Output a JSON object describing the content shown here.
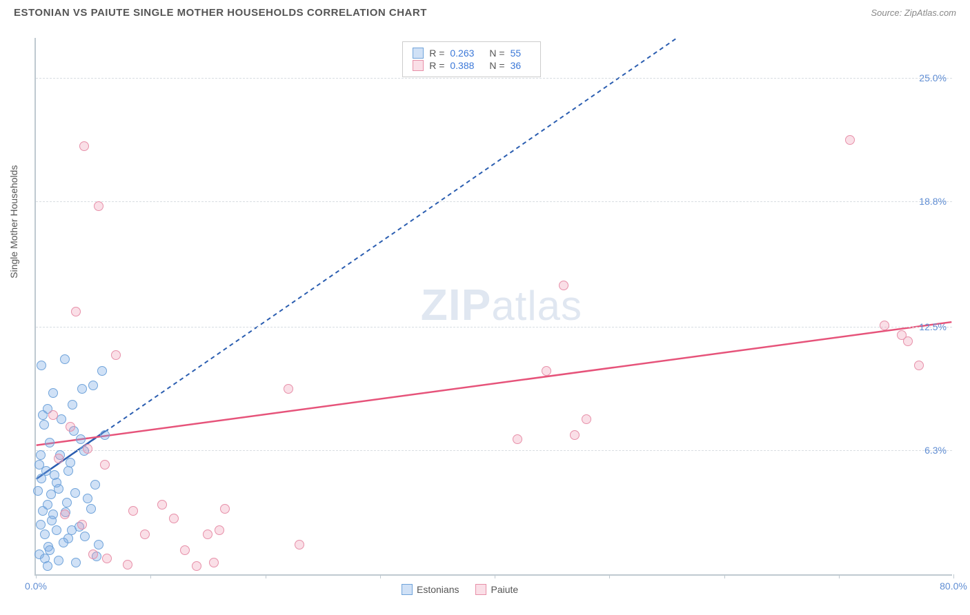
{
  "header": {
    "title": "ESTONIAN VS PAIUTE SINGLE MOTHER HOUSEHOLDS CORRELATION CHART",
    "source": "Source: ZipAtlas.com"
  },
  "chart": {
    "type": "scatter",
    "ylabel": "Single Mother Households",
    "xlim": [
      0,
      80
    ],
    "ylim": [
      0,
      27
    ],
    "xtick_positions": [
      0,
      10,
      20,
      30,
      40,
      50,
      60,
      70,
      80
    ],
    "xtick_labels_visible": {
      "0": "0.0%",
      "80": "80.0%"
    },
    "ytick_positions": [
      6.3,
      12.5,
      18.8,
      25.0
    ],
    "ytick_labels": [
      "6.3%",
      "12.5%",
      "18.8%",
      "25.0%"
    ],
    "grid_color": "#d8dde2",
    "axis_color": "#bfc9d0",
    "background_color": "#ffffff",
    "tick_label_color": "#5f8dd3",
    "watermark": {
      "bold": "ZIP",
      "rest": "atlas"
    },
    "marker_size": 14,
    "series": [
      {
        "name": "Estonians",
        "fill": "rgba(120,170,230,0.35)",
        "stroke": "#6fa3da",
        "trend": {
          "color": "#2a5db0",
          "dash": "6,5",
          "width": 2,
          "x1": 0,
          "y1": 4.8,
          "x2": 56,
          "y2": 27
        },
        "solid_segment": {
          "color": "#2a5db0",
          "width": 2.5,
          "x1": 0,
          "y1": 4.8,
          "x2": 6,
          "y2": 7.2
        },
        "stats": {
          "R": "0.263",
          "N": "55"
        },
        "points": [
          [
            0.2,
            4.2
          ],
          [
            0.3,
            5.5
          ],
          [
            0.4,
            6.0
          ],
          [
            0.5,
            4.8
          ],
          [
            0.6,
            3.2
          ],
          [
            0.7,
            7.5
          ],
          [
            0.8,
            2.0
          ],
          [
            0.9,
            5.2
          ],
          [
            1.0,
            8.3
          ],
          [
            1.1,
            1.4
          ],
          [
            1.2,
            6.6
          ],
          [
            1.3,
            4.0
          ],
          [
            1.4,
            2.7
          ],
          [
            1.5,
            9.1
          ],
          [
            0.5,
            10.5
          ],
          [
            1.0,
            3.5
          ],
          [
            1.6,
            5.0
          ],
          [
            1.8,
            2.2
          ],
          [
            2.0,
            4.3
          ],
          [
            2.2,
            7.8
          ],
          [
            2.5,
            10.8
          ],
          [
            2.6,
            3.1
          ],
          [
            2.8,
            1.8
          ],
          [
            3.0,
            5.6
          ],
          [
            3.2,
            8.5
          ],
          [
            3.4,
            4.1
          ],
          [
            3.8,
            2.4
          ],
          [
            4.0,
            9.3
          ],
          [
            4.2,
            6.2
          ],
          [
            4.5,
            3.8
          ],
          [
            5.0,
            9.5
          ],
          [
            5.2,
            4.5
          ],
          [
            5.5,
            1.5
          ],
          [
            5.8,
            10.2
          ],
          [
            6.0,
            7.0
          ],
          [
            0.3,
            1.0
          ],
          [
            0.8,
            0.8
          ],
          [
            1.2,
            1.2
          ],
          [
            1.5,
            3.0
          ],
          [
            1.8,
            4.6
          ],
          [
            2.1,
            6.0
          ],
          [
            2.4,
            1.6
          ],
          [
            2.8,
            5.2
          ],
          [
            3.1,
            2.2
          ],
          [
            3.5,
            0.6
          ],
          [
            3.9,
            6.8
          ],
          [
            4.3,
            1.9
          ],
          [
            4.8,
            3.3
          ],
          [
            5.3,
            0.9
          ],
          [
            1.0,
            0.4
          ],
          [
            0.4,
            2.5
          ],
          [
            0.6,
            8.0
          ],
          [
            2.0,
            0.7
          ],
          [
            2.7,
            3.6
          ],
          [
            3.3,
            7.2
          ]
        ]
      },
      {
        "name": "Paiute",
        "fill": "rgba(240,150,175,0.30)",
        "stroke": "#e78fa8",
        "trend": {
          "color": "#e6537a",
          "dash": "none",
          "width": 2.5,
          "x1": 0,
          "y1": 6.5,
          "x2": 80,
          "y2": 12.7
        },
        "stats": {
          "R": "0.388",
          "N": "36"
        },
        "points": [
          [
            1.5,
            8.0
          ],
          [
            2.0,
            5.8
          ],
          [
            3.0,
            7.4
          ],
          [
            3.5,
            13.2
          ],
          [
            4.0,
            2.5
          ],
          [
            4.2,
            21.5
          ],
          [
            5.5,
            18.5
          ],
          [
            6.0,
            5.5
          ],
          [
            7.0,
            11.0
          ],
          [
            8.0,
            0.5
          ],
          [
            8.5,
            3.2
          ],
          [
            9.5,
            2.0
          ],
          [
            11.0,
            3.5
          ],
          [
            12.0,
            2.8
          ],
          [
            13.0,
            1.2
          ],
          [
            14.0,
            0.4
          ],
          [
            15.0,
            2.0
          ],
          [
            16.0,
            2.2
          ],
          [
            15.5,
            0.6
          ],
          [
            16.5,
            3.3
          ],
          [
            22.0,
            9.3
          ],
          [
            23.0,
            1.5
          ],
          [
            42.0,
            6.8
          ],
          [
            44.5,
            10.2
          ],
          [
            46.0,
            14.5
          ],
          [
            47.0,
            7.0
          ],
          [
            48.0,
            7.8
          ],
          [
            71.0,
            21.8
          ],
          [
            74.0,
            12.5
          ],
          [
            75.5,
            12.0
          ],
          [
            76.0,
            11.7
          ],
          [
            77.0,
            10.5
          ],
          [
            5.0,
            1.0
          ],
          [
            6.2,
            0.8
          ],
          [
            2.5,
            3.0
          ],
          [
            4.5,
            6.3
          ]
        ]
      }
    ],
    "bottom_legend": [
      {
        "label": "Estonians",
        "fill": "rgba(120,170,230,0.35)",
        "stroke": "#6fa3da"
      },
      {
        "label": "Paiute",
        "fill": "rgba(240,150,175,0.30)",
        "stroke": "#e78fa8"
      }
    ]
  }
}
